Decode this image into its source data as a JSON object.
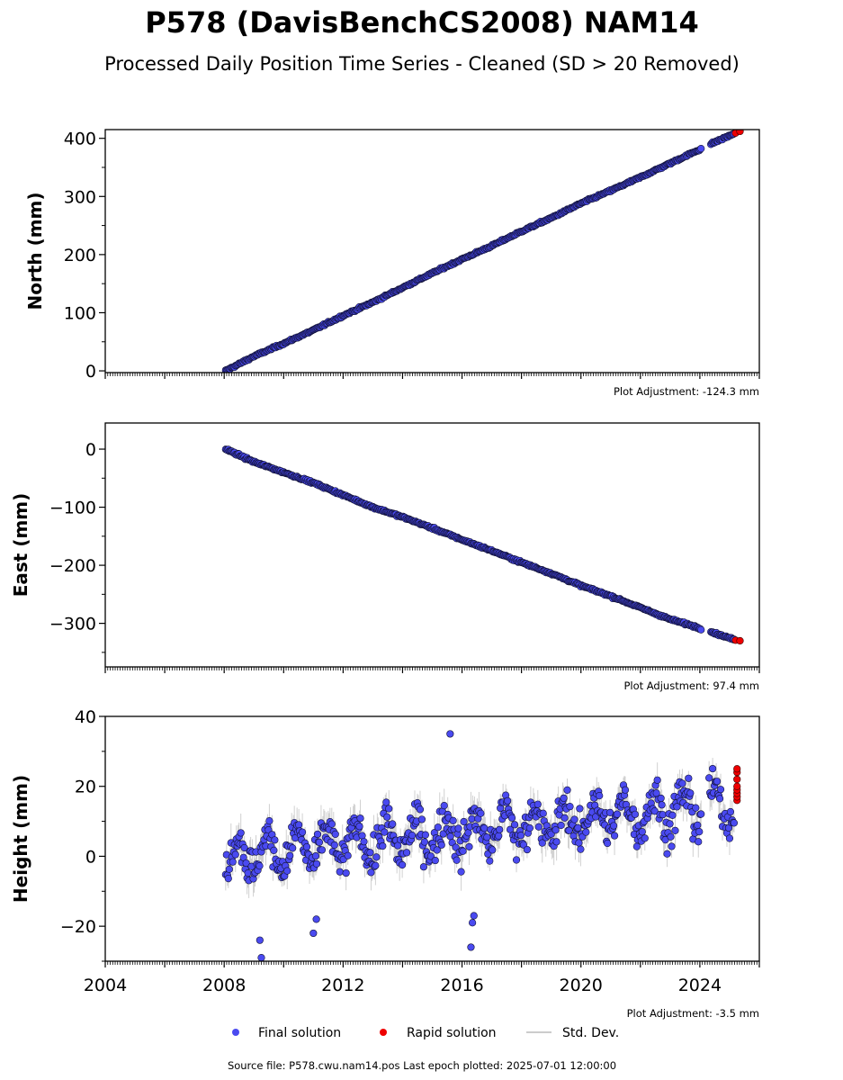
{
  "figure": {
    "title": "P578 (DavisBenchCS2008) NAM14",
    "subtitle": "Processed Daily Position Time Series - Cleaned (SD > 20 Removed)",
    "source_note": "Source file: P578.cwu.nam14.pos  Last epoch plotted: 2025-07-01 12:00:00"
  },
  "legend": {
    "final_label": "Final solution",
    "rapid_label": "Rapid solution",
    "std_label": "Std. Dev."
  },
  "colors": {
    "final": "#4a4af0",
    "final_edge": "#111133",
    "rapid": "#ee0000",
    "std": "#999999",
    "axes": "#000000"
  },
  "chart_data": [
    {
      "type": "scatter",
      "ylabel": "North (mm)",
      "adjustment_label": "Plot Adjustment: -124.3 mm",
      "xlim": [
        2004.0,
        2026.0
      ],
      "ylim": [
        -3,
        415
      ],
      "yticks": [
        0,
        100,
        200,
        300,
        400
      ],
      "ytick_labels": [
        "0",
        "100",
        "200",
        "300",
        "400"
      ],
      "show_xtick_labels": false,
      "series": [
        {
          "name": "Final solution",
          "x": [
            2008.05,
            2009,
            2010,
            2011,
            2012,
            2013,
            2014,
            2015,
            2016,
            2017,
            2018,
            2019,
            2020,
            2021,
            2022,
            2023,
            2024.0,
            2024.4,
            2025.15
          ],
          "y": [
            0,
            25,
            47,
            70,
            95,
            118,
            143,
            168,
            192,
            215,
            240,
            263,
            288,
            310,
            333,
            357,
            381,
            391,
            408
          ]
        },
        {
          "name": "Rapid solution",
          "x": [
            2025.2,
            2025.35
          ],
          "y": [
            409,
            412
          ]
        }
      ],
      "gaps": [
        [
          2024.05,
          2024.35
        ]
      ]
    },
    {
      "type": "scatter",
      "ylabel": "East (mm)",
      "adjustment_label": "Plot Adjustment: 97.4 mm",
      "xlim": [
        2004.0,
        2026.0
      ],
      "ylim": [
        -375,
        45
      ],
      "yticks": [
        0,
        -100,
        -200,
        -300
      ],
      "ytick_labels": [
        "0",
        "−100",
        "−200",
        "−300"
      ],
      "show_xtick_labels": false,
      "series": [
        {
          "name": "Final solution",
          "x": [
            2008.05,
            2009,
            2010,
            2011,
            2012,
            2013,
            2014,
            2015,
            2016,
            2017,
            2018,
            2019,
            2020,
            2021,
            2022,
            2023,
            2024.0,
            2024.4,
            2025.15
          ],
          "y": [
            0,
            -22,
            -40,
            -58,
            -79,
            -100,
            -117,
            -136,
            -156,
            -175,
            -195,
            -214,
            -235,
            -253,
            -273,
            -293,
            -308,
            -315,
            -328
          ]
        },
        {
          "name": "Rapid solution",
          "x": [
            2025.2,
            2025.35
          ],
          "y": [
            -329,
            -330
          ]
        }
      ],
      "gaps": [
        [
          2024.05,
          2024.35
        ]
      ]
    },
    {
      "type": "scatter",
      "ylabel": "Height (mm)",
      "adjustment_label": "Plot Adjustment: -3.5 mm",
      "xlim": [
        2004.0,
        2026.0
      ],
      "ylim": [
        -30,
        40
      ],
      "yticks": [
        -20,
        0,
        20,
        40
      ],
      "ytick_labels": [
        "−20",
        "0",
        "20",
        "40"
      ],
      "xticks": [
        2004,
        2008,
        2012,
        2016,
        2020,
        2024
      ],
      "xtick_labels": [
        "2004",
        "2008",
        "2012",
        "2016",
        "2020",
        "2024"
      ],
      "show_xtick_labels": true,
      "series": [
        {
          "name": "Final solution",
          "x_start": 2008.05,
          "x_end": 2025.15,
          "trend_start": 0,
          "trend_end": 15,
          "seasonal_amplitude": 5,
          "scatter": 4
        },
        {
          "name": "Rapid solution",
          "x": [
            2025.25,
            2025.25,
            2025.25,
            2025.25,
            2025.25,
            2025.25,
            2025.25,
            2025.25
          ],
          "y": [
            16,
            17,
            18,
            19,
            20,
            22,
            24,
            25
          ]
        }
      ],
      "outliers": {
        "x": [
          2009.2,
          2009.25,
          2011.0,
          2011.1,
          2016.3,
          2016.35,
          2016.4,
          2015.6
        ],
        "y": [
          -24,
          -29,
          -22,
          -18,
          -26,
          -19,
          -17,
          35
        ]
      },
      "gaps": [
        [
          2024.05,
          2024.3
        ]
      ]
    }
  ]
}
